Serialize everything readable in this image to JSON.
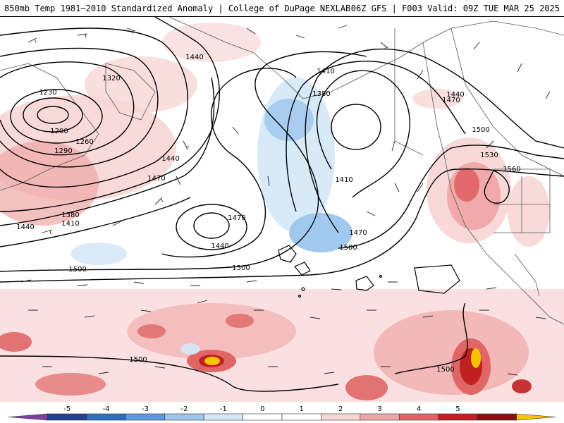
{
  "header": {
    "title_left": "850mb Temp 1981–2010 Standardized Anomaly | College of DuPage NEXLAB",
    "title_right": "06Z GFS | F003 Valid: 09Z TUE MAR 25 2025"
  },
  "contours": [
    {
      "label": "1200"
    },
    {
      "label": "1230"
    },
    {
      "label": "1260"
    },
    {
      "label": "1290"
    },
    {
      "label": "1320"
    },
    {
      "label": "1380"
    },
    {
      "label": "1410"
    },
    {
      "label": "1440"
    },
    {
      "label": "1470"
    },
    {
      "label": "1380"
    },
    {
      "label": "1410"
    },
    {
      "label": "1440"
    },
    {
      "label": "1410"
    },
    {
      "label": "1470"
    },
    {
      "label": "1500"
    },
    {
      "label": "1440"
    },
    {
      "label": "1470"
    },
    {
      "label": "1500"
    },
    {
      "label": "1440"
    },
    {
      "label": "1470"
    },
    {
      "label": "1500"
    },
    {
      "label": "1530"
    },
    {
      "label": "1560"
    },
    {
      "label": "1500"
    },
    {
      "label": "1500"
    },
    {
      "label": "1440"
    },
    {
      "label": "1500"
    }
  ],
  "colorbar": {
    "ticks": [
      "-5",
      "-4",
      "-3",
      "-2",
      "-1",
      "0",
      "1",
      "2",
      "3",
      "4",
      "5"
    ],
    "colors": [
      "#7b3fa0",
      "#1f3f8f",
      "#2f6fc0",
      "#5a9ae0",
      "#9cc6ee",
      "#d6e8f7",
      "#ffffff",
      "#ffffff",
      "#f8d6d6",
      "#f0a6a6",
      "#e06666",
      "#c02020",
      "#8a0f0f",
      "#f5c400"
    ]
  }
}
